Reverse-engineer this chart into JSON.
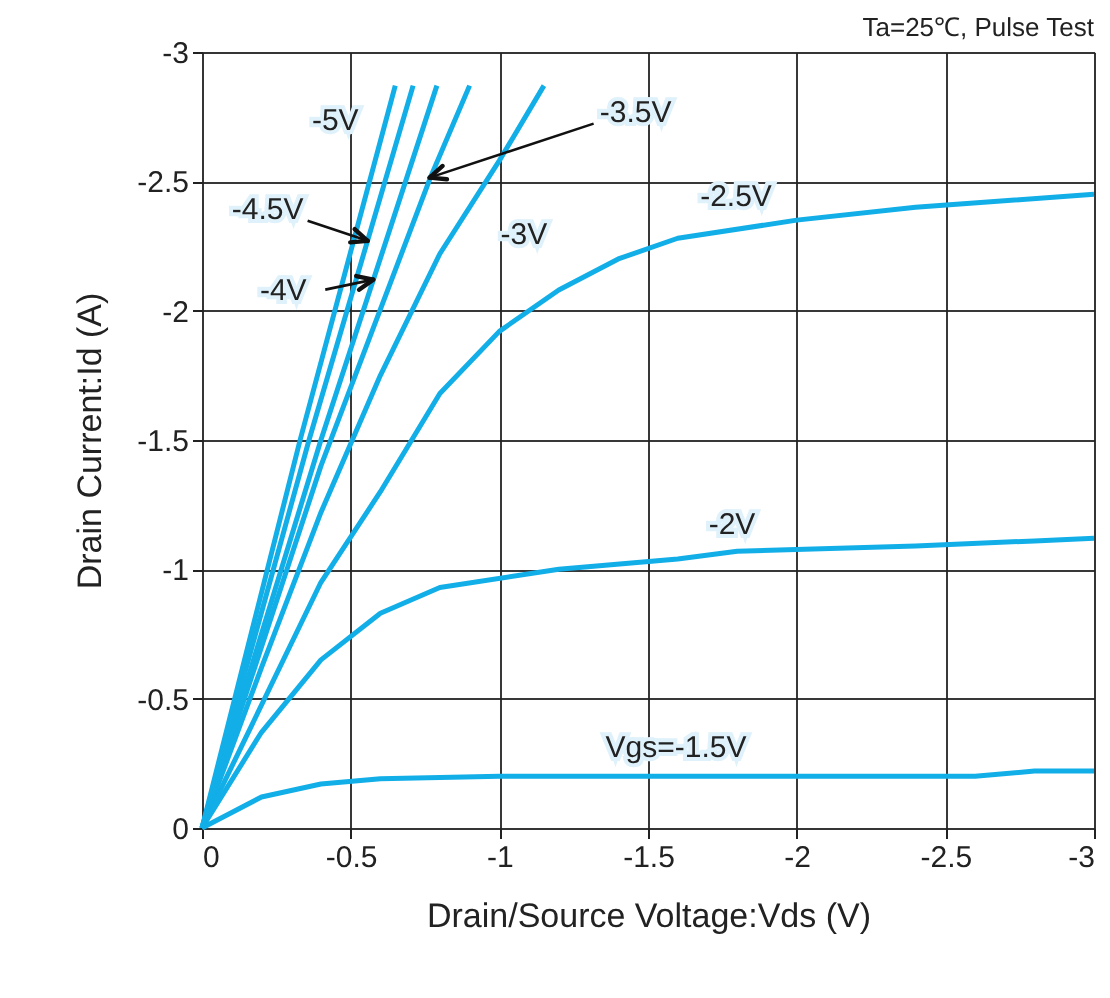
{
  "chart_data": {
    "type": "line",
    "xlabel": "Drain/Source Voltage:Vds  (V)",
    "ylabel": "Drain Current:Id  (A)",
    "xlim": [
      0,
      -3
    ],
    "ylim": [
      0,
      -3
    ],
    "xticks": [
      0,
      -0.5,
      -1,
      -1.5,
      -2,
      -2.5,
      -3
    ],
    "yticks": [
      0,
      -0.5,
      -1,
      -1.5,
      -2,
      -2.5,
      -3
    ],
    "grid": true,
    "line_style": "solid",
    "series": [
      {
        "name": "Vgs=-1.5V",
        "color": "#12aee8",
        "x": [
          0,
          -0.2,
          -0.4,
          -0.6,
          -1,
          -2,
          -2.6,
          -2.8,
          -3
        ],
        "values": [
          0,
          -0.12,
          -0.17,
          -0.19,
          -0.2,
          -0.2,
          -0.2,
          -0.22,
          -0.22
        ]
      },
      {
        "name": "-2V",
        "color": "#12aee8",
        "x": [
          0,
          -0.2,
          -0.4,
          -0.6,
          -0.8,
          -1.2,
          -1.6,
          -1.8,
          -2.4,
          -2.8,
          -3
        ],
        "values": [
          0,
          -0.37,
          -0.65,
          -0.83,
          -0.93,
          -1.0,
          -1.04,
          -1.07,
          -1.09,
          -1.11,
          -1.12
        ]
      },
      {
        "name": "-2.5V",
        "color": "#12aee8",
        "x": [
          0,
          -0.4,
          -0.6,
          -0.8,
          -1,
          -1.2,
          -1.4,
          -1.6,
          -2,
          -2.4,
          -3
        ],
        "values": [
          0,
          -0.95,
          -1.3,
          -1.68,
          -1.92,
          -2.08,
          -2.2,
          -2.28,
          -2.35,
          -2.4,
          -2.45
        ]
      },
      {
        "name": "-3V",
        "color": "#12aee8",
        "x": [
          0,
          -0.2,
          -0.4,
          -0.6,
          -0.8,
          -1,
          -1.15
        ],
        "values": [
          0,
          -0.62,
          -1.22,
          -1.75,
          -2.22,
          -2.58,
          -2.87
        ]
      },
      {
        "name": "-3.5V",
        "color": "#12aee8",
        "x": [
          0,
          -0.4,
          -0.77,
          -0.9
        ],
        "values": [
          0,
          -1.4,
          -2.52,
          -2.87
        ]
      },
      {
        "color": "#12aee8",
        "x": [
          0,
          -0.4,
          -0.79
        ],
        "values": [
          0,
          -1.5,
          -2.87
        ]
      },
      {
        "color": "#12aee8",
        "x": [
          0,
          -0.36,
          -0.71
        ],
        "values": [
          0,
          -1.5,
          -2.87
        ]
      },
      {
        "name": "-5V",
        "color": "#12aee8",
        "x": [
          0,
          -0.33,
          -0.65
        ],
        "values": [
          0,
          -1.5,
          -2.87
        ]
      }
    ],
    "annotations": [
      "Ta=25℃, Pulse Test",
      {
        "text": "-4V",
        "x": -0.576,
        "y": -2.12
      },
      {
        "text": "-4.5V",
        "x": -0.557,
        "y": -2.27
      }
    ]
  }
}
